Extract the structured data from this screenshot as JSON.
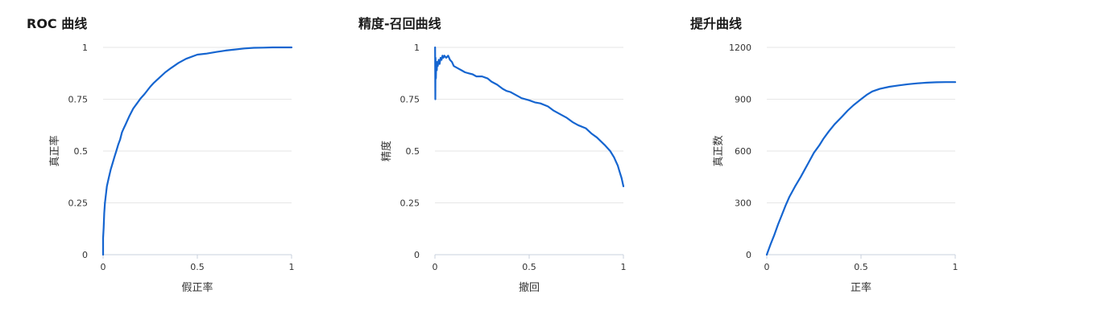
{
  "colors": {
    "line": "#1565d0",
    "grid": "#e6e6e6",
    "axis": "#c8d0dc",
    "text": "#333333"
  },
  "chart_data": [
    {
      "type": "line",
      "title": "ROC 曲线",
      "xlabel": "假正率",
      "ylabel": "真正率",
      "xlim": [
        0,
        1
      ],
      "ylim": [
        0,
        1
      ],
      "xticks": [
        0,
        0.5,
        1
      ],
      "xtick_labels": [
        "0",
        "0.5",
        "1"
      ],
      "yticks": [
        0,
        0.25,
        0.5,
        0.75,
        1
      ],
      "ytick_labels": [
        "0",
        "0.25",
        "0.5",
        "0.75",
        "1"
      ],
      "grid": true,
      "legend": "none",
      "series": [
        {
          "x": [
            0,
            0,
            0.003,
            0.006,
            0.01,
            0.015,
            0.02,
            0.03,
            0.04,
            0.05,
            0.06,
            0.07,
            0.08,
            0.09,
            0.1,
            0.11,
            0.12,
            0.14,
            0.16,
            0.18,
            0.2,
            0.22,
            0.25,
            0.27,
            0.3,
            0.33,
            0.36,
            0.4,
            0.44,
            0.5,
            0.55,
            0.6,
            0.65,
            0.7,
            0.75,
            0.8,
            0.85,
            0.9,
            0.95,
            1
          ],
          "y": [
            0,
            0.08,
            0.13,
            0.2,
            0.25,
            0.29,
            0.33,
            0.37,
            0.41,
            0.44,
            0.47,
            0.5,
            0.53,
            0.555,
            0.59,
            0.61,
            0.63,
            0.67,
            0.705,
            0.73,
            0.755,
            0.775,
            0.81,
            0.83,
            0.855,
            0.88,
            0.9,
            0.925,
            0.945,
            0.965,
            0.97,
            0.978,
            0.985,
            0.99,
            0.995,
            0.998,
            0.999,
            1,
            1,
            1
          ]
        }
      ]
    },
    {
      "type": "line",
      "title": "精度-召回曲线",
      "xlabel": "撤回",
      "ylabel": "精度",
      "xlim": [
        0,
        1
      ],
      "ylim": [
        0,
        1
      ],
      "xticks": [
        0,
        0.5,
        1
      ],
      "xtick_labels": [
        "0",
        "0.5",
        "1"
      ],
      "yticks": [
        0,
        0.25,
        0.5,
        0.75,
        1
      ],
      "ytick_labels": [
        "0",
        "0.25",
        "0.5",
        "0.75",
        "1"
      ],
      "grid": true,
      "legend": "none",
      "series": [
        {
          "x": [
            0.001,
            0.002,
            0.003,
            0.005,
            0.007,
            0.01,
            0.012,
            0.015,
            0.02,
            0.025,
            0.03,
            0.035,
            0.04,
            0.045,
            0.05,
            0.06,
            0.07,
            0.08,
            0.09,
            0.1,
            0.12,
            0.14,
            0.16,
            0.18,
            0.2,
            0.22,
            0.25,
            0.28,
            0.3,
            0.33,
            0.36,
            0.38,
            0.4,
            0.43,
            0.46,
            0.5,
            0.53,
            0.56,
            0.6,
            0.63,
            0.66,
            0.7,
            0.73,
            0.76,
            0.8,
            0.83,
            0.86,
            0.9,
            0.93,
            0.95,
            0.97,
            0.98,
            0.99,
            1
          ],
          "y": [
            1,
            0.75,
            0.95,
            0.85,
            0.93,
            0.89,
            0.93,
            0.91,
            0.94,
            0.92,
            0.95,
            0.94,
            0.96,
            0.95,
            0.96,
            0.95,
            0.96,
            0.94,
            0.93,
            0.91,
            0.9,
            0.89,
            0.88,
            0.875,
            0.87,
            0.86,
            0.86,
            0.85,
            0.835,
            0.82,
            0.8,
            0.79,
            0.785,
            0.77,
            0.755,
            0.745,
            0.735,
            0.73,
            0.715,
            0.695,
            0.68,
            0.66,
            0.64,
            0.625,
            0.61,
            0.585,
            0.565,
            0.53,
            0.5,
            0.47,
            0.43,
            0.4,
            0.37,
            0.33
          ]
        }
      ]
    },
    {
      "type": "line",
      "title": "提升曲线",
      "xlabel": "正率",
      "ylabel": "真正数",
      "xlim": [
        0,
        1
      ],
      "ylim": [
        0,
        1200
      ],
      "xticks": [
        0,
        0.5,
        1
      ],
      "xtick_labels": [
        "0",
        "0.5",
        "1"
      ],
      "yticks": [
        0,
        300,
        600,
        900,
        1200
      ],
      "ytick_labels": [
        "0",
        "300",
        "600",
        "900",
        "1200"
      ],
      "grid": true,
      "legend": "none",
      "series": [
        {
          "x": [
            0,
            0.02,
            0.04,
            0.06,
            0.08,
            0.1,
            0.12,
            0.15,
            0.18,
            0.2,
            0.22,
            0.25,
            0.28,
            0.3,
            0.33,
            0.36,
            0.4,
            0.43,
            0.46,
            0.5,
            0.53,
            0.56,
            0.6,
            0.65,
            0.7,
            0.75,
            0.8,
            0.85,
            0.9,
            0.95,
            1
          ],
          "y": [
            0,
            60,
            115,
            175,
            230,
            285,
            335,
            395,
            450,
            490,
            530,
            590,
            635,
            670,
            715,
            755,
            800,
            835,
            865,
            900,
            925,
            945,
            960,
            972,
            980,
            987,
            992,
            996,
            998,
            999,
            999
          ]
        }
      ]
    }
  ]
}
